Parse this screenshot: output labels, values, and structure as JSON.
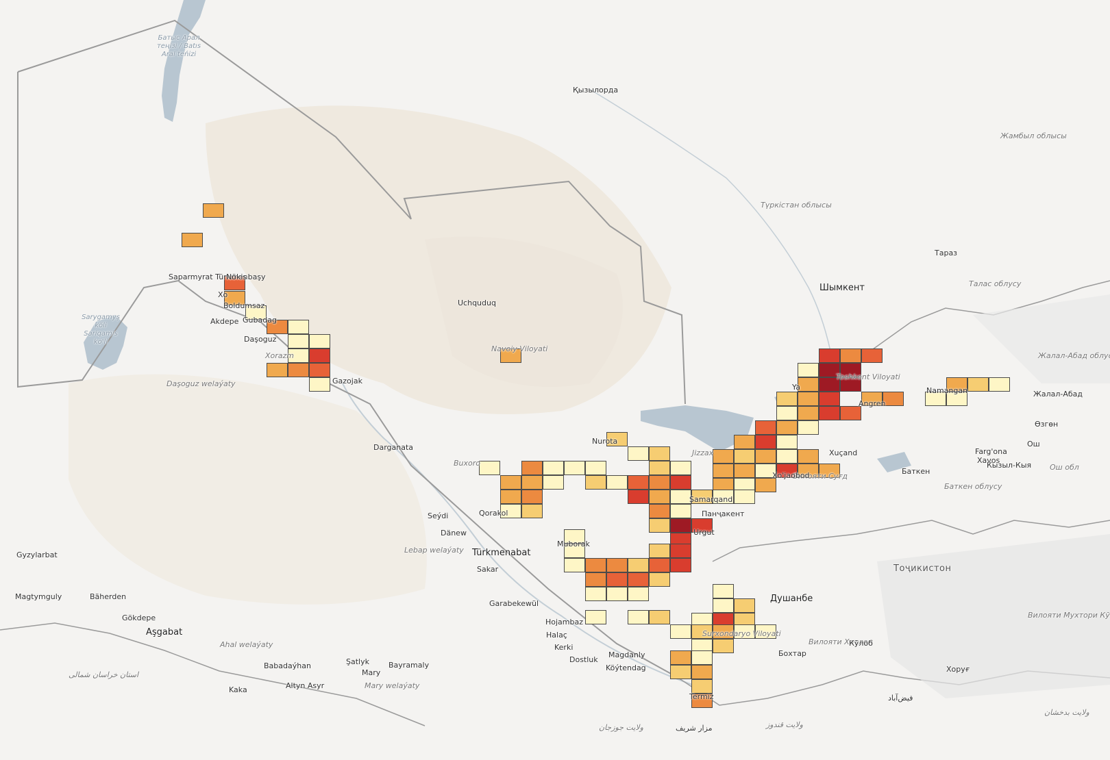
{
  "map": {
    "colors": {
      "land": "#f4f3f1",
      "desert": "#efe9df",
      "water": "#b8c6d1",
      "border": "#9a9a9a",
      "cell_border": "#4a4a4a",
      "scale": [
        "#fef6c6",
        "#f6cd72",
        "#f0a94e",
        "#ec8a40",
        "#e76238",
        "#d93d2e",
        "#9e1a24"
      ]
    },
    "labels": [
      {
        "text": "Батыс Арал теңізі / Batıs Aral teńizi",
        "kind": "water"
      },
      {
        "text": "Қызылорда",
        "kind": "city"
      },
      {
        "text": "Жамбыл облысы",
        "kind": "region"
      },
      {
        "text": "Түркістан облысы",
        "kind": "region"
      },
      {
        "text": "Тараз",
        "kind": "city"
      },
      {
        "text": "Талас облусу",
        "kind": "region"
      },
      {
        "text": "Шымкент",
        "kind": "city-big"
      },
      {
        "text": "Жалал-Абад облусу",
        "kind": "region"
      },
      {
        "text": "Жалал-Абад",
        "kind": "city"
      },
      {
        "text": "Өзгөн",
        "kind": "city"
      },
      {
        "text": "Ош обл",
        "kind": "region"
      },
      {
        "text": "Saparmyrat Türkmenbaşy",
        "kind": "city"
      },
      {
        "text": "Nökis",
        "kind": "city"
      },
      {
        "text": "Xo",
        "kind": "city"
      },
      {
        "text": "Boldumsaz",
        "kind": "city"
      },
      {
        "text": "Gubadag",
        "kind": "city"
      },
      {
        "text": "Akdepe",
        "kind": "city"
      },
      {
        "text": "Daşoguz",
        "kind": "city"
      },
      {
        "text": "Xorazm",
        "kind": "region"
      },
      {
        "text": "Gazojak",
        "kind": "city"
      },
      {
        "text": "Sarygamyş köli Sariqamis ko'li",
        "kind": "water"
      },
      {
        "text": "Daşoguz welaýaty",
        "kind": "region"
      },
      {
        "text": "Uchquduq",
        "kind": "city"
      },
      {
        "text": "Navoiy Viloyati",
        "kind": "region"
      },
      {
        "text": "Darganata",
        "kind": "city"
      },
      {
        "text": "Nurota",
        "kind": "city"
      },
      {
        "text": "Jizzax",
        "kind": "region"
      },
      {
        "text": "Buxoro",
        "kind": "region"
      },
      {
        "text": "Qorakol",
        "kind": "city"
      },
      {
        "text": "Seýdi",
        "kind": "city"
      },
      {
        "text": "Dänew",
        "kind": "city"
      },
      {
        "text": "Türkmenabat",
        "kind": "city-big"
      },
      {
        "text": "Lebap welaýaty",
        "kind": "region"
      },
      {
        "text": "Sakar",
        "kind": "city"
      },
      {
        "text": "Muborak",
        "kind": "city"
      },
      {
        "text": "Garabekewül",
        "kind": "city"
      },
      {
        "text": "Hojambaz",
        "kind": "city"
      },
      {
        "text": "Halaç",
        "kind": "city"
      },
      {
        "text": "Kerki",
        "kind": "city"
      },
      {
        "text": "Magdanly",
        "kind": "city"
      },
      {
        "text": "Dostluk",
        "kind": "city"
      },
      {
        "text": "Köýtendag",
        "kind": "city"
      },
      {
        "text": "Gyzylarbat",
        "kind": "city"
      },
      {
        "text": "Magtymguly",
        "kind": "city"
      },
      {
        "text": "Bäherden",
        "kind": "city"
      },
      {
        "text": "Gökdepe",
        "kind": "city"
      },
      {
        "text": "Aşgabat",
        "kind": "city-big"
      },
      {
        "text": "Ahal welaýaty",
        "kind": "region"
      },
      {
        "text": "Babadaýhan",
        "kind": "city"
      },
      {
        "text": "Şatlyk",
        "kind": "city"
      },
      {
        "text": "Bayramaly",
        "kind": "city"
      },
      {
        "text": "Mary",
        "kind": "city"
      },
      {
        "text": "Mary welaýaty",
        "kind": "region"
      },
      {
        "text": "Altyn Asyr",
        "kind": "city"
      },
      {
        "text": "Kaka",
        "kind": "city"
      },
      {
        "text": "استان خراسان شمالی",
        "kind": "region"
      },
      {
        "text": "Ya",
        "kind": "city"
      },
      {
        "text": "Toshkent Viloyati",
        "kind": "region"
      },
      {
        "text": "Angren",
        "kind": "city"
      },
      {
        "text": "Namangan",
        "kind": "city"
      },
      {
        "text": "Farg'ona",
        "kind": "city"
      },
      {
        "text": "Xavos",
        "kind": "city"
      },
      {
        "text": "Xuçand",
        "kind": "city"
      },
      {
        "text": "Вилояти Суғд",
        "kind": "region"
      },
      {
        "text": "Xo'jaobod",
        "kind": "city"
      },
      {
        "text": "Баткен",
        "kind": "city"
      },
      {
        "text": "Баткен облусу",
        "kind": "region"
      },
      {
        "text": "Кызыл-Кыя",
        "kind": "city"
      },
      {
        "text": "Ош",
        "kind": "city"
      },
      {
        "text": "Панҷакент",
        "kind": "city"
      },
      {
        "text": "Samarqand",
        "kind": "city"
      },
      {
        "text": "Urgut",
        "kind": "city"
      },
      {
        "text": "Тоҷикистон",
        "kind": "country"
      },
      {
        "text": "Душанбе",
        "kind": "city-big"
      },
      {
        "text": "Вилояти Хатлон",
        "kind": "region"
      },
      {
        "text": "Кӯлоб",
        "kind": "city"
      },
      {
        "text": "Бохтар",
        "kind": "city"
      },
      {
        "text": "Хоруғ",
        "kind": "city"
      },
      {
        "text": "Вилояти Мухтори Кӯҳистони Бадахшон",
        "kind": "region"
      },
      {
        "text": "Surxondaryo Viloyati",
        "kind": "region"
      },
      {
        "text": "Termiz",
        "kind": "city"
      },
      {
        "text": "ولایت جوزجان",
        "kind": "region"
      },
      {
        "text": "مزار شریف",
        "kind": "city"
      },
      {
        "text": "ولایت قندوز",
        "kind": "region"
      },
      {
        "text": "فیض‌آباد",
        "kind": "city"
      },
      {
        "text": "ولایت بدخشان",
        "kind": "region"
      }
    ],
    "grid_cells": [
      [
        3,
        1
      ],
      [
        1,
        1
      ],
      [
        6,
        5
      ],
      [
        3,
        6
      ],
      [
        2,
        6
      ],
      [
        0,
        6
      ],
      [
        3,
        7
      ],
      [
        0,
        7
      ],
      [
        0,
        8
      ],
      [
        0,
        9
      ],
      [
        5,
        9
      ],
      [
        3,
        10
      ],
      [
        6,
        10
      ],
      [
        0,
        12
      ],
      [
        3,
        13
      ],
      [
        3,
        14
      ],
      [
        4,
        14
      ],
      [
        5,
        15
      ],
      [
        0,
        16
      ],
      [
        0,
        17
      ],
      [
        2,
        17
      ],
      [
        4,
        18
      ],
      [
        0,
        18
      ],
      [
        2,
        19
      ],
      [
        3,
        19
      ],
      [
        5,
        20
      ],
      [
        5,
        21
      ],
      [
        5,
        22
      ],
      [
        0,
        23
      ],
      [
        3,
        25
      ],
      [
        3,
        26
      ],
      [
        2,
        27
      ],
      [
        5,
        28
      ],
      [
        5,
        29
      ],
      [
        6,
        29
      ],
      [
        6,
        30
      ],
      [
        3,
        31
      ],
      [
        0,
        32
      ],
      [
        1,
        33
      ],
      [
        4,
        34
      ],
      [
        2,
        35
      ],
      [
        0,
        36
      ],
      [
        1,
        37
      ],
      [
        0,
        38
      ],
      [
        2,
        39
      ],
      [
        5,
        40
      ],
      [
        3,
        41
      ],
      [
        2,
        42
      ],
      [
        1,
        43
      ],
      [
        0,
        44
      ],
      [
        0,
        45
      ],
      [
        1,
        46
      ],
      [
        0,
        47
      ],
      [
        0,
        48
      ],
      [
        2,
        49
      ],
      [
        1,
        50
      ],
      [
        4,
        51
      ],
      [
        4,
        52
      ],
      [
        4,
        53
      ],
      [
        5,
        54
      ],
      [
        6,
        55
      ],
      [
        6,
        56
      ],
      [
        3,
        57
      ],
      [
        1,
        58
      ],
      [
        0,
        59
      ],
      [
        1,
        60
      ],
      [
        4,
        61
      ],
      [
        1,
        62
      ],
      [
        3,
        63
      ],
      [
        0,
        64
      ],
      [
        5,
        65
      ],
      [
        4,
        66
      ],
      [
        5,
        67
      ],
      [
        3,
        68
      ],
      [
        2,
        69
      ],
      [
        0,
        70
      ],
      [
        1,
        71
      ],
      [
        3,
        72
      ],
      [
        3,
        73
      ],
      [
        5,
        74
      ],
      [
        0,
        75
      ],
      [
        5,
        76
      ],
      [
        4,
        77
      ],
      [
        5,
        78
      ],
      [
        4,
        79
      ],
      [
        5,
        80
      ],
      [
        5,
        81
      ],
      [
        0,
        82
      ],
      [
        1,
        83
      ],
      [
        2,
        84
      ],
      [
        0,
        85
      ],
      [
        3,
        86
      ],
      [
        4,
        87
      ],
      [
        3,
        88
      ],
      [
        3,
        89
      ],
      [
        5,
        90
      ],
      [
        4,
        91
      ],
      [
        0,
        92
      ],
      [
        0,
        93
      ],
      [
        3,
        94
      ],
      [
        1,
        95
      ],
      [
        5,
        96
      ],
      [
        2,
        97
      ],
      [
        3,
        98
      ],
      [
        5,
        99
      ],
      [
        4,
        100
      ],
      [
        2,
        101
      ],
      [
        3,
        102
      ],
      [
        0,
        103
      ],
      [
        1,
        104
      ],
      [
        0,
        105
      ],
      [
        1,
        106
      ],
      [
        2,
        107
      ],
      [
        1,
        108
      ],
      [
        5,
        109
      ],
      [
        4,
        110
      ],
      [
        0,
        111
      ],
      [
        1,
        112
      ],
      [
        0,
        113
      ],
      [
        1,
        114
      ],
      [
        4,
        115
      ],
      [
        0,
        116
      ],
      [
        2,
        117
      ],
      [
        5,
        118
      ],
      [
        0,
        119
      ],
      [
        0,
        120
      ],
      [
        0,
        121
      ],
      [
        0,
        122
      ],
      [
        1,
        123
      ],
      [
        2,
        124
      ],
      [
        0,
        125
      ],
      [
        2,
        126
      ],
      [
        3,
        127
      ],
      [
        1,
        128
      ],
      [
        0,
        129
      ],
      [
        1,
        130
      ],
      [
        4,
        131
      ],
      [
        0,
        132
      ],
      [
        1,
        133
      ],
      [
        0,
        134
      ],
      [
        2,
        135
      ],
      [
        1,
        136
      ],
      [
        3,
        137
      ],
      [
        2,
        138
      ],
      [
        0,
        139
      ],
      [
        0,
        140
      ],
      [
        0,
        141
      ],
      [
        1,
        142
      ],
      [
        3,
        143
      ],
      [
        5,
        144
      ],
      [
        3,
        145
      ],
      [
        4,
        146
      ],
      [
        2,
        147
      ],
      [
        0,
        148
      ],
      [
        1,
        149
      ],
      [
        3,
        150
      ],
      [
        0,
        151
      ],
      [
        0,
        152
      ],
      [
        0,
        153
      ],
      [
        2,
        154
      ],
      [
        3,
        155
      ],
      [
        2,
        156
      ],
      [
        0,
        157
      ],
      [
        0,
        158
      ],
      [
        0,
        159
      ],
      [
        0,
        160
      ],
      [
        2,
        161
      ],
      [
        0,
        162
      ],
      [
        5,
        163
      ],
      [
        0,
        164
      ],
      [
        0,
        165
      ],
      [
        1,
        166
      ],
      [
        0,
        167
      ],
      [
        0,
        168
      ],
      [
        1,
        169
      ],
      [
        3,
        170
      ],
      [
        2,
        171
      ],
      [
        2,
        172
      ],
      [
        3,
        173
      ],
      [
        4,
        174
      ],
      [
        3,
        175
      ],
      [
        0,
        176
      ],
      [
        1,
        177
      ],
      [
        0,
        178
      ],
      [
        5,
        179
      ],
      [
        2,
        180
      ],
      [
        1,
        181
      ],
      [
        2,
        182
      ],
      [
        4,
        183
      ],
      [
        0,
        184
      ],
      [
        2,
        185
      ],
      [
        5,
        186
      ],
      [
        1,
        187
      ],
      [
        0,
        188
      ],
      [
        0,
        189
      ],
      [
        3,
        190
      ],
      [
        5,
        191
      ],
      [
        4,
        192
      ],
      [
        5,
        193
      ],
      [
        3,
        194
      ],
      [
        0,
        195
      ],
      [
        3,
        196
      ],
      [
        0,
        197
      ],
      [
        5,
        198
      ],
      [
        5,
        199
      ],
      [
        4,
        200
      ],
      [
        6,
        201
      ],
      [
        5,
        202
      ],
      [
        5,
        203
      ],
      [
        3,
        204
      ],
      [
        0,
        205
      ],
      [
        5,
        206
      ]
    ]
  }
}
